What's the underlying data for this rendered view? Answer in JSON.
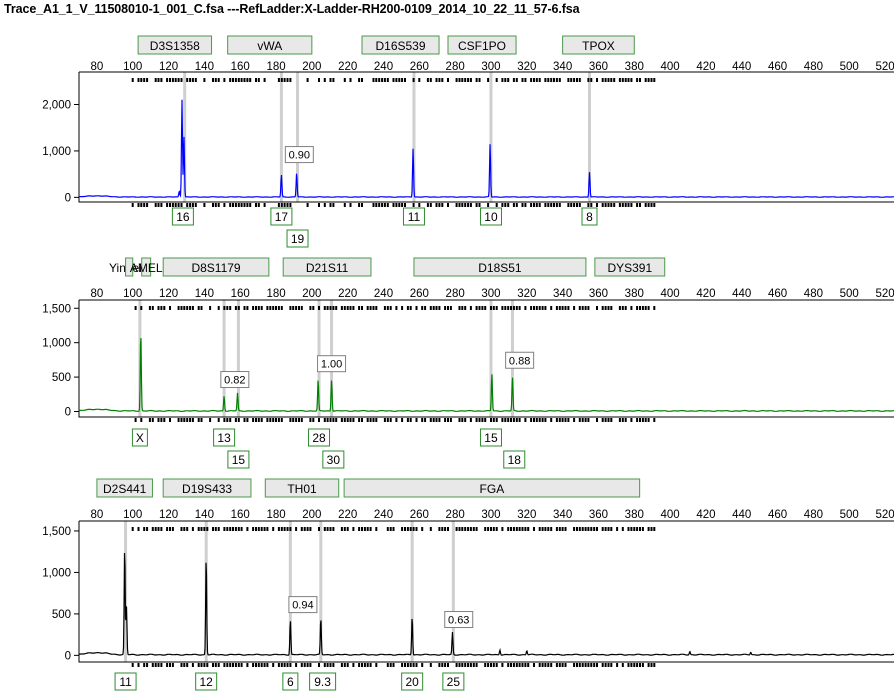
{
  "window": {
    "title": "Trace_A1_1_V_11508010-1_001_C.fsa ---RefLadder:X-Ladder-RH200-0109_2014_10_22_11_57-6.fsa"
  },
  "chart_data": [
    {
      "type": "line",
      "panel": "blue-dye",
      "color": "#0000ff",
      "x_range": [
        70,
        525
      ],
      "y_range": [
        -100,
        2700
      ],
      "x_ticks": [
        80,
        100,
        120,
        140,
        160,
        180,
        200,
        220,
        240,
        260,
        280,
        300,
        320,
        340,
        360,
        380,
        400,
        420,
        440,
        460,
        480,
        500,
        520
      ],
      "y_ticks": [
        {
          "v": 2000,
          "label": "2,000"
        },
        {
          "v": 1000,
          "label": "1,000"
        },
        {
          "v": 0,
          "label": "0"
        }
      ],
      "markers": [
        {
          "label": "D3S1358",
          "start": 103,
          "end": 144
        },
        {
          "label": "vWA",
          "start": 153,
          "end": 200
        },
        {
          "label": "D16S539",
          "start": 228,
          "end": 271
        },
        {
          "label": "CSF1PO",
          "start": 276,
          "end": 314
        },
        {
          "label": "TPOX",
          "start": 340,
          "end": 380
        }
      ],
      "guides": [
        129,
        183,
        192,
        257,
        300,
        355
      ],
      "peaks": [
        {
          "x": 126,
          "h": 130
        },
        {
          "x": 127.5,
          "h": 2100
        },
        {
          "x": 128.6,
          "h": 1300
        },
        {
          "x": 183,
          "h": 480
        },
        {
          "x": 191.5,
          "h": 520
        },
        {
          "x": 256.5,
          "h": 1050
        },
        {
          "x": 299.5,
          "h": 1150
        },
        {
          "x": 355,
          "h": 540
        }
      ],
      "ratios": [
        {
          "label": "0.90",
          "x": 193,
          "y": 900
        }
      ],
      "alleles": [
        {
          "label": "16",
          "x": 128,
          "row": 0
        },
        {
          "label": "17",
          "x": 183,
          "row": 0
        },
        {
          "label": "19",
          "x": 192,
          "row": 1
        },
        {
          "label": "11",
          "x": 257,
          "row": 0
        },
        {
          "label": "10",
          "x": 300,
          "row": 0
        },
        {
          "label": "8",
          "x": 355,
          "row": 0
        }
      ]
    },
    {
      "type": "line",
      "panel": "green-dye",
      "color": "#008000",
      "x_range": [
        70,
        525
      ],
      "y_range": [
        -80,
        1620
      ],
      "x_ticks": [
        80,
        100,
        120,
        140,
        160,
        180,
        200,
        220,
        240,
        260,
        280,
        300,
        320,
        340,
        360,
        380,
        400,
        420,
        440,
        460,
        480,
        500,
        520
      ],
      "y_ticks": [
        {
          "v": 1500,
          "label": "1,500"
        },
        {
          "v": 1000,
          "label": "1,000"
        },
        {
          "v": 500,
          "label": "500"
        },
        {
          "v": 0,
          "label": "0"
        }
      ],
      "markers": [
        {
          "label": "Yindel",
          "start": 87,
          "end": 103,
          "plain": true
        },
        {
          "label": "",
          "start": 96,
          "end": 100
        },
        {
          "label": "AMEL",
          "start": 105,
          "end": 110
        },
        {
          "label": "D8S1179",
          "start": 117,
          "end": 176
        },
        {
          "label": "D21S11",
          "start": 184,
          "end": 233
        },
        {
          "label": "D18S51",
          "start": 257,
          "end": 353
        },
        {
          "label": "DYS391",
          "start": 358,
          "end": 397
        }
      ],
      "guides": [
        104,
        151,
        159,
        204,
        211,
        300,
        312
      ],
      "peaks": [
        {
          "x": 104.5,
          "h": 1150
        },
        {
          "x": 151,
          "h": 220
        },
        {
          "x": 158.5,
          "h": 260
        },
        {
          "x": 203.5,
          "h": 450
        },
        {
          "x": 211,
          "h": 450
        },
        {
          "x": 300.5,
          "h": 550
        },
        {
          "x": 312,
          "h": 480
        }
      ],
      "ratios": [
        {
          "label": "0.82",
          "x": 157,
          "y": 450
        },
        {
          "label": "1.00",
          "x": 211,
          "y": 680
        },
        {
          "label": "0.88",
          "x": 316,
          "y": 730
        }
      ],
      "alleles": [
        {
          "label": "X",
          "x": 104,
          "row": 0
        },
        {
          "label": "13",
          "x": 151,
          "row": 0
        },
        {
          "label": "15",
          "x": 159,
          "row": 1
        },
        {
          "label": "28",
          "x": 204,
          "row": 0
        },
        {
          "label": "30",
          "x": 212,
          "row": 1
        },
        {
          "label": "15",
          "x": 300,
          "row": 0
        },
        {
          "label": "18",
          "x": 313,
          "row": 1
        }
      ]
    },
    {
      "type": "line",
      "panel": "yellow-dye",
      "color": "#000000",
      "x_range": [
        70,
        525
      ],
      "y_range": [
        -80,
        1620
      ],
      "x_ticks": [
        80,
        100,
        120,
        140,
        160,
        180,
        200,
        220,
        240,
        260,
        280,
        300,
        320,
        340,
        360,
        380,
        400,
        420,
        440,
        460,
        480,
        500,
        520
      ],
      "y_ticks": [
        {
          "v": 1500,
          "label": "1,500"
        },
        {
          "v": 1000,
          "label": "1,000"
        },
        {
          "v": 500,
          "label": "500"
        },
        {
          "v": 0,
          "label": "0"
        }
      ],
      "markers": [
        {
          "label": "D2S441",
          "start": 80,
          "end": 111
        },
        {
          "label": "D19S433",
          "start": 117,
          "end": 166
        },
        {
          "label": "TH01",
          "start": 174,
          "end": 215
        },
        {
          "label": "FGA",
          "start": 218,
          "end": 383
        }
      ],
      "guides": [
        96,
        141,
        188,
        205,
        256,
        279
      ],
      "peaks": [
        {
          "x": 95.5,
          "h": 1300
        },
        {
          "x": 96.5,
          "h": 580
        },
        {
          "x": 141,
          "h": 1180
        },
        {
          "x": 188,
          "h": 420
        },
        {
          "x": 205,
          "h": 440
        },
        {
          "x": 256,
          "h": 460
        },
        {
          "x": 278.5,
          "h": 270
        },
        {
          "x": 305,
          "h": 60
        },
        {
          "x": 320,
          "h": 50
        },
        {
          "x": 411,
          "h": 40
        },
        {
          "x": 445,
          "h": 30
        }
      ],
      "ratios": [
        {
          "label": "0.94",
          "x": 195,
          "y": 600
        },
        {
          "label": "0.63",
          "x": 282,
          "y": 420
        }
      ],
      "alleles": [
        {
          "label": "11",
          "x": 96,
          "row": 0
        },
        {
          "label": "12",
          "x": 141,
          "row": 0
        },
        {
          "label": "6",
          "x": 188,
          "row": 0
        },
        {
          "label": "9.3",
          "x": 206,
          "row": 0
        },
        {
          "label": "20",
          "x": 256,
          "row": 0
        },
        {
          "label": "25",
          "x": 279,
          "row": 0
        }
      ]
    }
  ]
}
